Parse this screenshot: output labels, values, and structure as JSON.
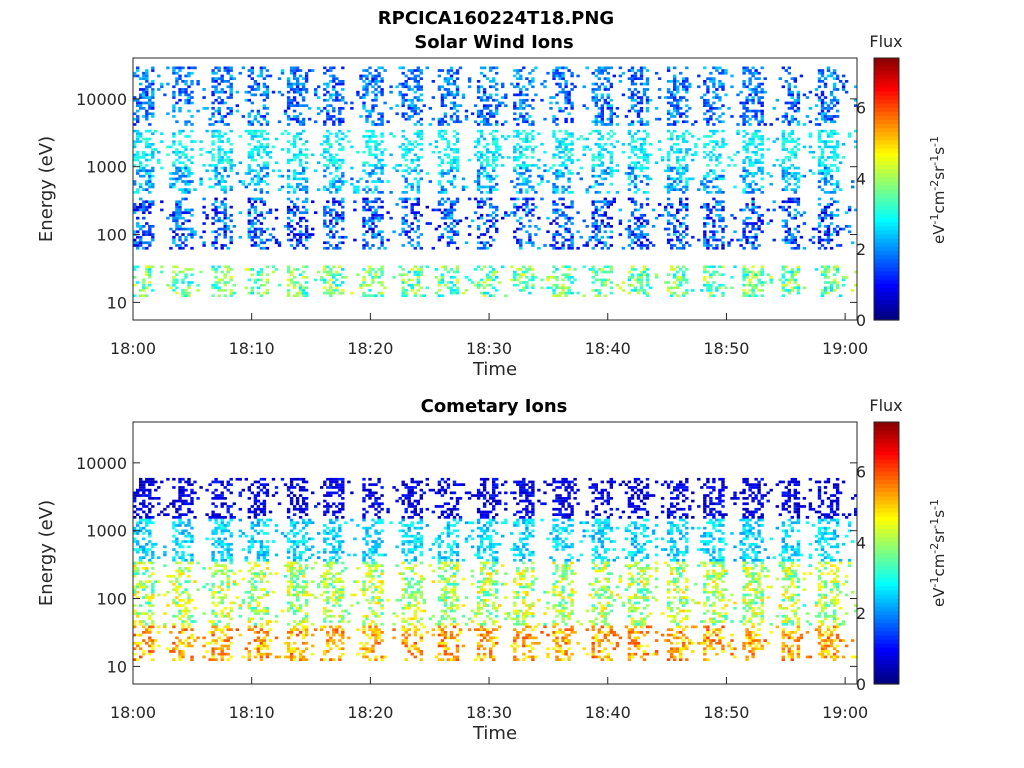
{
  "figure": {
    "title": "RPCICA160224T18.PNG"
  },
  "chart_data": [
    {
      "type": "heatmap",
      "title": "Solar Wind Ions",
      "xlabel": "Time",
      "ylabel": "Energy (eV)",
      "x_ticks": [
        "18:00",
        "18:10",
        "18:20",
        "18:30",
        "18:40",
        "18:50",
        "19:00"
      ],
      "xlim": [
        "18:00",
        "19:01"
      ],
      "y_ticks": [
        "10",
        "100",
        "1000",
        "10000"
      ],
      "ylim": [
        5.5,
        40000
      ],
      "yscale": "log",
      "colorbar": {
        "label_top": "Flux",
        "label": "eV-1cm-2sr-1s-1",
        "ticks": [
          "0",
          "2",
          "4",
          "6"
        ],
        "range": [
          0,
          7.4
        ],
        "colormap": "jet"
      },
      "sweep_period_minutes": 3.2,
      "bands": [
        {
          "energy_range_eV": [
            1000,
            3500
          ],
          "flux_range": [
            2.2,
            3.2
          ]
        },
        {
          "energy_range_eV": [
            400,
            1000
          ],
          "flux_range": [
            1.5,
            3.0
          ]
        },
        {
          "energy_range_eV": [
            60,
            350
          ],
          "flux_range": [
            0.5,
            2.5
          ]
        },
        {
          "energy_range_eV": [
            12,
            35
          ],
          "flux_range": [
            2.5,
            4.5
          ]
        },
        {
          "energy_range_eV": [
            4000,
            30000
          ],
          "flux_range": [
            1.0,
            2.5
          ]
        }
      ]
    },
    {
      "type": "heatmap",
      "title": "Cometary Ions",
      "xlabel": "Time",
      "ylabel": "Energy (eV)",
      "x_ticks": [
        "18:00",
        "18:10",
        "18:20",
        "18:30",
        "18:40",
        "18:50",
        "19:00"
      ],
      "xlim": [
        "18:00",
        "19:01"
      ],
      "y_ticks": [
        "10",
        "100",
        "1000",
        "10000"
      ],
      "ylim": [
        5.5,
        40000
      ],
      "yscale": "log",
      "colorbar": {
        "label_top": "Flux",
        "label": "eV-1cm-2sr-1s-1",
        "ticks": [
          "0",
          "2",
          "4",
          "6"
        ],
        "range": [
          0,
          7.4
        ],
        "colormap": "jet"
      },
      "sweep_period_minutes": 3.2,
      "bands": [
        {
          "energy_range_eV": [
            12,
            40
          ],
          "flux_range": [
            4.5,
            6.0
          ]
        },
        {
          "energy_range_eV": [
            40,
            350
          ],
          "flux_range": [
            3.0,
            5.0
          ]
        },
        {
          "energy_range_eV": [
            350,
            1500
          ],
          "flux_range": [
            2.0,
            3.0
          ]
        },
        {
          "energy_range_eV": [
            1500,
            6000
          ],
          "flux_range": [
            0.3,
            1.2
          ]
        }
      ]
    }
  ]
}
